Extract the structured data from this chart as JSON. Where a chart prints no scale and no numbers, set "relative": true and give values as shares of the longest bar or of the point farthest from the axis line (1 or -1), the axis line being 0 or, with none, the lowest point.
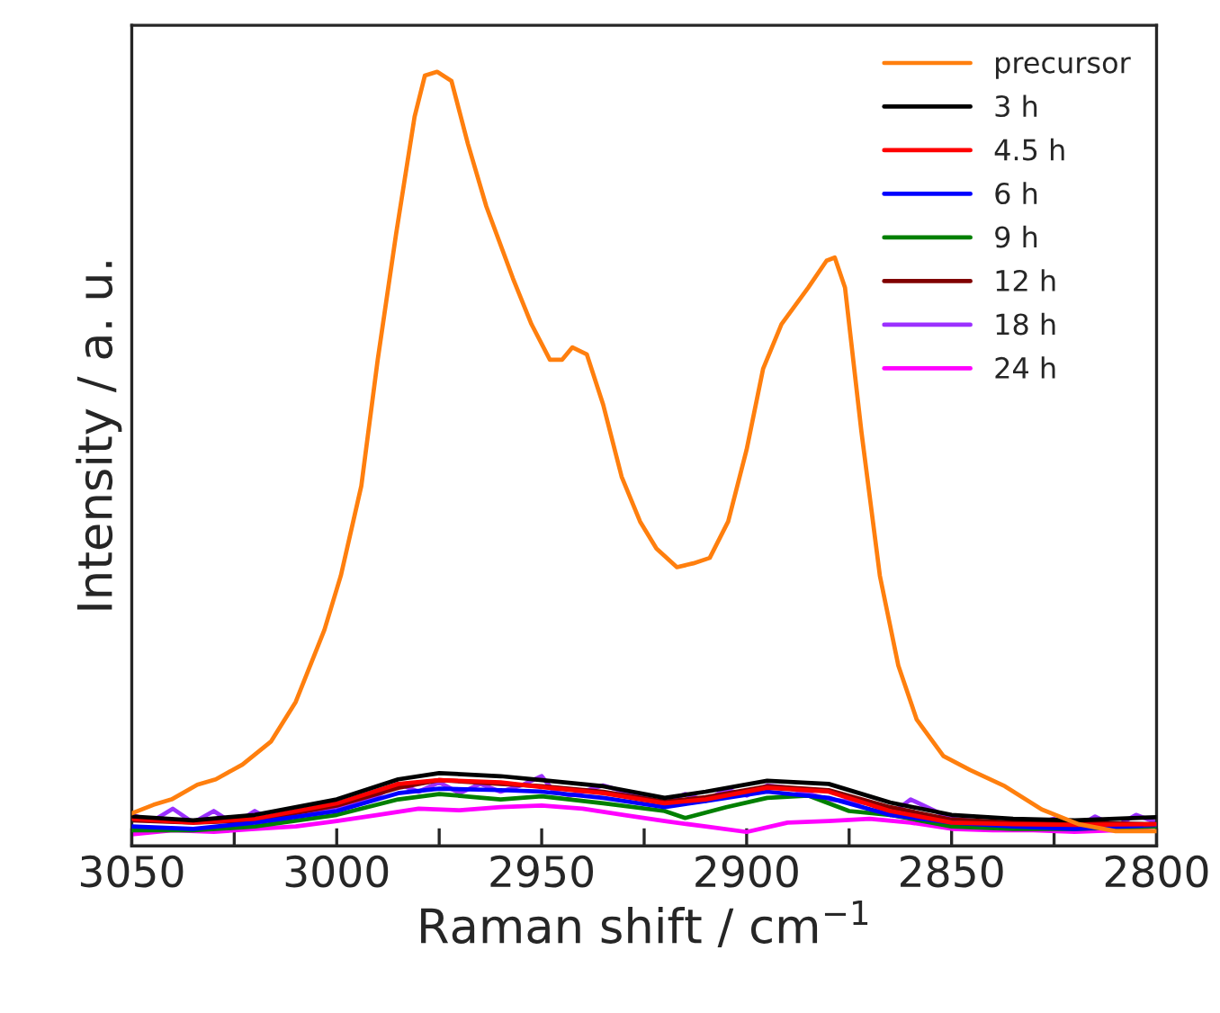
{
  "chart_data": {
    "type": "line",
    "xlabel": "Raman shift / cm$^{−1}$",
    "ylabel": "Intensity / a. u.",
    "relative": true,
    "tick_labels": "x",
    "legend": "top right",
    "grid": false,
    "line_style": "solid",
    "marker": "none",
    "xlim": [
      3050,
      2800
    ],
    "xticks": [
      3050,
      {
        "value": 3025,
        "label": null
      },
      3000,
      {
        "value": 2975,
        "label": null
      },
      2950,
      {
        "value": 2925,
        "label": null
      },
      2900,
      {
        "value": 2875,
        "label": null
      },
      2850,
      {
        "value": 2825,
        "label": null
      },
      2800
    ],
    "series": [
      {
        "name": "precursor",
        "color": "#ff7f0e",
        "x": [
          3050,
          3044.7,
          3040.3,
          3034,
          3029.5,
          3023,
          3016,
          3010,
          3003,
          2999,
          2994,
          2990,
          2985.5,
          2981,
          2978.5,
          2975.5,
          2972,
          2968,
          2963.5,
          2957,
          2952.5,
          2948,
          2945,
          2942.5,
          2939,
          2935,
          2930.5,
          2926,
          2922,
          2917,
          2913,
          2909,
          2904.5,
          2900,
          2896,
          2891.5,
          2885,
          2880.5,
          2878.5,
          2876,
          2872,
          2867.5,
          2863,
          2858.5,
          2852,
          2845.5,
          2837,
          2828,
          2819,
          2810,
          2800
        ],
        "values": [
          0.042,
          0.053,
          0.06,
          0.079,
          0.086,
          0.105,
          0.135,
          0.186,
          0.279,
          0.349,
          0.465,
          0.628,
          0.791,
          0.942,
          0.995,
          1.0,
          0.988,
          0.907,
          0.826,
          0.733,
          0.674,
          0.628,
          0.628,
          0.644,
          0.635,
          0.57,
          0.477,
          0.419,
          0.384,
          0.36,
          0.365,
          0.372,
          0.419,
          0.512,
          0.616,
          0.674,
          0.721,
          0.756,
          0.76,
          0.721,
          0.535,
          0.349,
          0.233,
          0.163,
          0.116,
          0.098,
          0.077,
          0.047,
          0.028,
          0.019,
          0.019
        ]
      },
      {
        "name": "3 h",
        "color": "#000000",
        "x": [
          3050,
          3035,
          3020,
          3000,
          2985,
          2975,
          2960,
          2950,
          2935,
          2920,
          2910,
          2895,
          2880,
          2865,
          2850,
          2835,
          2820,
          2800
        ],
        "values": [
          0.038,
          0.033,
          0.04,
          0.06,
          0.086,
          0.094,
          0.09,
          0.085,
          0.077,
          0.062,
          0.07,
          0.084,
          0.08,
          0.056,
          0.04,
          0.035,
          0.033,
          0.037
        ]
      },
      {
        "name": "4.5 h",
        "color": "#ff0000",
        "x": [
          3050,
          3035,
          3020,
          3000,
          2985,
          2975,
          2960,
          2950,
          2935,
          2920,
          2910,
          2895,
          2880,
          2865,
          2850,
          2835,
          2820,
          2800
        ],
        "values": [
          0.035,
          0.03,
          0.035,
          0.055,
          0.08,
          0.085,
          0.082,
          0.076,
          0.068,
          0.055,
          0.06,
          0.075,
          0.07,
          0.045,
          0.03,
          0.028,
          0.027,
          0.028
        ]
      },
      {
        "name": "6 h",
        "color": "#0000ff",
        "x": [
          3050,
          3035,
          3020,
          3000,
          2985,
          2975,
          2960,
          2950,
          2935,
          2920,
          2910,
          2895,
          2880,
          2865,
          2850,
          2835,
          2820,
          2800
        ],
        "values": [
          0.025,
          0.022,
          0.03,
          0.045,
          0.068,
          0.074,
          0.072,
          0.07,
          0.062,
          0.05,
          0.058,
          0.07,
          0.062,
          0.04,
          0.03,
          0.025,
          0.022,
          0.027
        ]
      },
      {
        "name": "9 h",
        "color": "#008000",
        "x": [
          3050,
          3035,
          3020,
          3000,
          2985,
          2975,
          2960,
          2950,
          2935,
          2920,
          2915,
          2905,
          2895,
          2885,
          2875,
          2865,
          2850,
          2835,
          2820,
          2800
        ],
        "values": [
          0.02,
          0.02,
          0.025,
          0.04,
          0.06,
          0.067,
          0.06,
          0.064,
          0.055,
          0.045,
          0.036,
          0.05,
          0.062,
          0.065,
          0.045,
          0.04,
          0.025,
          0.022,
          0.022,
          0.025
        ]
      },
      {
        "name": "12 h",
        "color": "#800000",
        "x": [
          3050,
          3035,
          3020,
          3000,
          2985,
          2975,
          2960,
          2950,
          2935,
          2920,
          2910,
          2895,
          2880,
          2865,
          2850,
          2835,
          2820,
          2800
        ],
        "values": [
          0.033,
          0.03,
          0.033,
          0.052,
          0.075,
          0.085,
          0.08,
          0.077,
          0.07,
          0.057,
          0.063,
          0.077,
          0.072,
          0.05,
          0.034,
          0.03,
          0.03,
          0.028
        ]
      },
      {
        "name": "18 h",
        "color": "#9b30ff",
        "x": [
          3050,
          3045,
          3040,
          3035,
          3030,
          3025,
          3020,
          3015,
          3010,
          3000,
          2990,
          2985,
          2980,
          2975,
          2970,
          2965,
          2960,
          2955,
          2950,
          2947,
          2943,
          2935,
          2925,
          2920,
          2915,
          2910,
          2905,
          2900,
          2895,
          2890,
          2880,
          2870,
          2865,
          2860,
          2850,
          2840,
          2830,
          2825,
          2820,
          2815,
          2810,
          2805,
          2800
        ],
        "values": [
          0.04,
          0.032,
          0.048,
          0.03,
          0.045,
          0.028,
          0.045,
          0.03,
          0.04,
          0.05,
          0.065,
          0.08,
          0.07,
          0.082,
          0.068,
          0.08,
          0.07,
          0.078,
          0.09,
          0.07,
          0.065,
          0.078,
          0.062,
          0.055,
          0.067,
          0.058,
          0.073,
          0.065,
          0.078,
          0.075,
          0.06,
          0.055,
          0.04,
          0.06,
          0.035,
          0.03,
          0.028,
          0.035,
          0.022,
          0.038,
          0.025,
          0.04,
          0.03
        ]
      },
      {
        "name": "24 h",
        "color": "#ff00ff",
        "x": [
          3050,
          3040,
          3030,
          3020,
          3010,
          3000,
          2990,
          2980,
          2970,
          2960,
          2950,
          2940,
          2930,
          2920,
          2910,
          2900,
          2890,
          2880,
          2870,
          2860,
          2850,
          2840,
          2830,
          2820,
          2810,
          2800
        ],
        "values": [
          0.015,
          0.02,
          0.018,
          0.022,
          0.025,
          0.032,
          0.04,
          0.048,
          0.046,
          0.05,
          0.052,
          0.048,
          0.04,
          0.032,
          0.025,
          0.018,
          0.03,
          0.032,
          0.035,
          0.03,
          0.022,
          0.02,
          0.02,
          0.018,
          0.02,
          0.025
        ]
      }
    ]
  }
}
